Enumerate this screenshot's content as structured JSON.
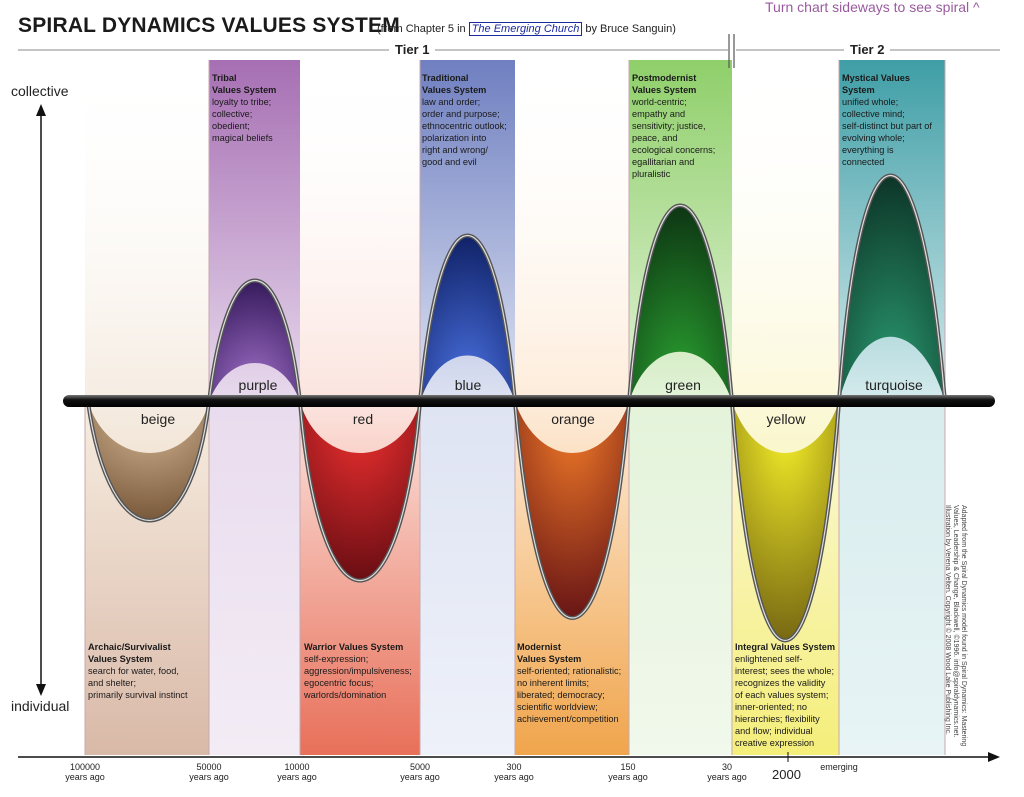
{
  "title": "SPIRAL DYNAMICS VALUES SYSTEM",
  "subtitle_pre": "(from Chapter 5 in ",
  "subtitle_book": "The Emerging Church",
  "subtitle_post": " by Bruce Sanguin)",
  "hint": "Turn chart sideways to see spiral ^",
  "tier1": "Tier 1",
  "tier2": "Tier 2",
  "axis_top": "collective",
  "axis_bottom": "individual",
  "year_2000": "2000",
  "bands": [
    {
      "id": "beige",
      "label": "beige",
      "heading": [
        "Archaic/Survivalist",
        "Values System"
      ],
      "body": [
        "search for water, food,",
        "and shelter;",
        "primarily survival instinct"
      ],
      "color": "#b08a5e"
    },
    {
      "id": "purple",
      "label": "purple",
      "heading": [
        "Tribal",
        "Values System"
      ],
      "body": [
        "loyalty to tribe;",
        "collective;",
        "obedient;",
        "magical beliefs"
      ],
      "color": "#8a4aa0"
    },
    {
      "id": "red",
      "label": "red",
      "heading": [
        "Warrior Values System"
      ],
      "body": [
        "self-expression;",
        "aggression/impulsiveness;",
        "egocentric focus;",
        "warlords/domination"
      ],
      "color": "#d43a2a"
    },
    {
      "id": "blue",
      "label": "blue",
      "heading": [
        "Traditional",
        "Values System"
      ],
      "body": [
        "law and order;",
        "order and purpose;",
        "ethnocentric outlook;",
        "polarization into",
        "right and wrong/",
        "good and evil"
      ],
      "color": "#3a4aa8"
    },
    {
      "id": "orange",
      "label": "orange",
      "heading": [
        "Modernist",
        "Values System"
      ],
      "body": [
        "self-oriented; rationalistic;",
        "no inherent limits;",
        "liberated; democracy;",
        "scientific worldview;",
        "achievement/competition"
      ],
      "color": "#e8702a"
    },
    {
      "id": "green",
      "label": "green",
      "heading": [
        "Postmodernist",
        "Values System"
      ],
      "body": [
        "world-centric;",
        "empathy and",
        "sensitivity; justice,",
        "peace, and",
        "ecological concerns;",
        "egallitarian and",
        "pluralistic"
      ],
      "color": "#5aa83a"
    },
    {
      "id": "yellow",
      "label": "yellow",
      "heading": [
        "Integral Values System"
      ],
      "body": [
        "enlightened self-",
        "interest; sees the whole;",
        "recognizes the validity",
        "of each values system;",
        "inner-oriented; no",
        "hierarchies; flexibility",
        "and flow; individual",
        "creative expression"
      ],
      "color": "#e8e030"
    },
    {
      "id": "turquoise",
      "label": "turquoise",
      "heading": [
        "Mystical Values",
        "System"
      ],
      "body": [
        "unified whole;",
        "collective mind;",
        "self-distinct but part of",
        "evolving whole;",
        "everything is",
        "connected"
      ],
      "color": "#2a9a9a"
    }
  ],
  "ticks": [
    {
      "id": "t100000",
      "lines": [
        "100000",
        "years ago"
      ]
    },
    {
      "id": "t50000",
      "lines": [
        "50000",
        "years ago"
      ]
    },
    {
      "id": "t10000",
      "lines": [
        "10000",
        "years ago"
      ]
    },
    {
      "id": "t5000",
      "lines": [
        "5000",
        "years ago"
      ]
    },
    {
      "id": "t300",
      "lines": [
        "300",
        "years ago"
      ]
    },
    {
      "id": "t150",
      "lines": [
        "150",
        "years ago"
      ]
    },
    {
      "id": "t30",
      "lines": [
        "30",
        "years ago"
      ]
    },
    {
      "id": "temerging",
      "lines": [
        "emerging"
      ]
    }
  ],
  "credit": "Adapted from the Spiral Dynamics model found in Spiral Dynamics: Mastering Values, Leadership & Change, Blackwell, ©1996. info@spiraldynamics.net. Illustration by Verena Velten. Copyright © 2008 Wood Lake Publishing Inc."
}
